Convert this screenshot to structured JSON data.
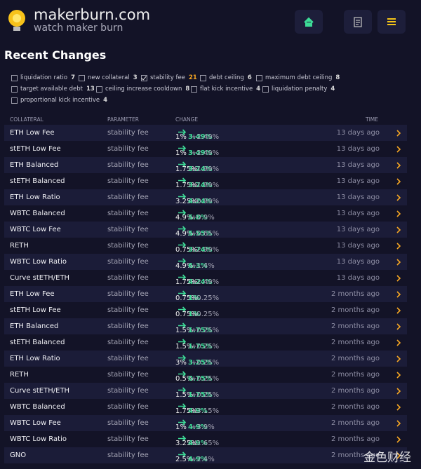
{
  "header": {
    "title": "makerburn.com",
    "subtitle": "watch maker burn"
  },
  "page_title": "Recent Changes",
  "filters": [
    {
      "label": "liquidation ratio",
      "count": 7,
      "checked": false
    },
    {
      "label": "new collateral",
      "count": 3,
      "checked": false
    },
    {
      "label": "stability fee",
      "count": 21,
      "checked": true
    },
    {
      "label": "debt ceiling",
      "count": 6,
      "checked": false
    },
    {
      "label": "maximum debt ceiling",
      "count": 8,
      "checked": false
    },
    {
      "label": "target available debt",
      "count": 13,
      "checked": false
    },
    {
      "label": "ceiling increase cooldown",
      "count": 8,
      "checked": false
    },
    {
      "label": "flat kick incentive",
      "count": 4,
      "checked": false
    },
    {
      "label": "liquidation penalty",
      "count": 4,
      "checked": false
    },
    {
      "label": "proportional kick incentive",
      "count": 4,
      "checked": false
    }
  ],
  "table": {
    "columns": [
      "COLLATERAL",
      "PARAMETER",
      "CHANGE",
      "TIME"
    ],
    "rows": [
      {
        "collateral": "ETH Low Fee",
        "parameter": "stability fee",
        "from": "1%",
        "to": "3.49%",
        "delta": "+2.49%",
        "time": "13 days ago"
      },
      {
        "collateral": "stETH Low Fee",
        "parameter": "stability fee",
        "from": "1%",
        "to": "3.49%",
        "delta": "+2.49%",
        "time": "13 days ago"
      },
      {
        "collateral": "ETH Balanced",
        "parameter": "stability fee",
        "from": "1.75%",
        "to": "3.74%",
        "delta": "+1.99%",
        "time": "13 days ago"
      },
      {
        "collateral": "stETH Balanced",
        "parameter": "stability fee",
        "from": "1.75%",
        "to": "3.74%",
        "delta": "+1.99%",
        "time": "13 days ago"
      },
      {
        "collateral": "ETH Low Ratio",
        "parameter": "stability fee",
        "from": "3.25%",
        "to": "4.24%",
        "delta": "+0.99%",
        "time": "13 days ago"
      },
      {
        "collateral": "WBTC Balanced",
        "parameter": "stability fee",
        "from": "4.9%",
        "to": "5.8%",
        "delta": "+0.9%",
        "time": "13 days ago"
      },
      {
        "collateral": "WBTC Low Fee",
        "parameter": "stability fee",
        "from": "4.9%",
        "to": "5.55%",
        "delta": "+0.65%",
        "time": "13 days ago"
      },
      {
        "collateral": "RETH",
        "parameter": "stability fee",
        "from": "0.75%",
        "to": "3.74%",
        "delta": "+2.99%",
        "time": "13 days ago"
      },
      {
        "collateral": "WBTC Low Ratio",
        "parameter": "stability fee",
        "from": "4.9%",
        "to": "6.3%",
        "delta": "+1.4%",
        "time": "13 days ago"
      },
      {
        "collateral": "Curve stETH/ETH",
        "parameter": "stability fee",
        "from": "1.75%",
        "to": "4.24%",
        "delta": "+2.49%",
        "time": "13 days ago"
      },
      {
        "collateral": "ETH Low Fee",
        "parameter": "stability fee",
        "from": "0.75%",
        "to": "1%",
        "delta": "+0.25%",
        "time": "2 months ago"
      },
      {
        "collateral": "stETH Low Fee",
        "parameter": "stability fee",
        "from": "0.75%",
        "to": "1%",
        "delta": "+0.25%",
        "time": "2 months ago"
      },
      {
        "collateral": "ETH Balanced",
        "parameter": "stability fee",
        "from": "1.5%",
        "to": "1.75%",
        "delta": "+0.25%",
        "time": "2 months ago"
      },
      {
        "collateral": "stETH Balanced",
        "parameter": "stability fee",
        "from": "1.5%",
        "to": "1.75%",
        "delta": "+0.25%",
        "time": "2 months ago"
      },
      {
        "collateral": "ETH Low Ratio",
        "parameter": "stability fee",
        "from": "3%",
        "to": "3.25%",
        "delta": "+0.25%",
        "time": "2 months ago"
      },
      {
        "collateral": "RETH",
        "parameter": "stability fee",
        "from": "0.5%",
        "to": "0.75%",
        "delta": "+0.25%",
        "time": "2 months ago"
      },
      {
        "collateral": "Curve stETH/ETH",
        "parameter": "stability fee",
        "from": "1.5%",
        "to": "1.75%",
        "delta": "+0.25%",
        "time": "2 months ago"
      },
      {
        "collateral": "WBTC Balanced",
        "parameter": "stability fee",
        "from": "1.75%",
        "to": "4.9%",
        "delta": "+3.15%",
        "time": "2 months ago"
      },
      {
        "collateral": "WBTC Low Fee",
        "parameter": "stability fee",
        "from": "1%",
        "to": "4.9%",
        "delta": "+3.9%",
        "time": "2 months ago"
      },
      {
        "collateral": "WBTC Low Ratio",
        "parameter": "stability fee",
        "from": "3.25%",
        "to": "4.9%",
        "delta": "+1.65%",
        "time": "2 months ago"
      },
      {
        "collateral": "GNO",
        "parameter": "stability fee",
        "from": "2.5%",
        "to": "4.9%",
        "delta": "+2.4%",
        "time": "2 months ago"
      }
    ]
  },
  "watermark": "金色财经"
}
